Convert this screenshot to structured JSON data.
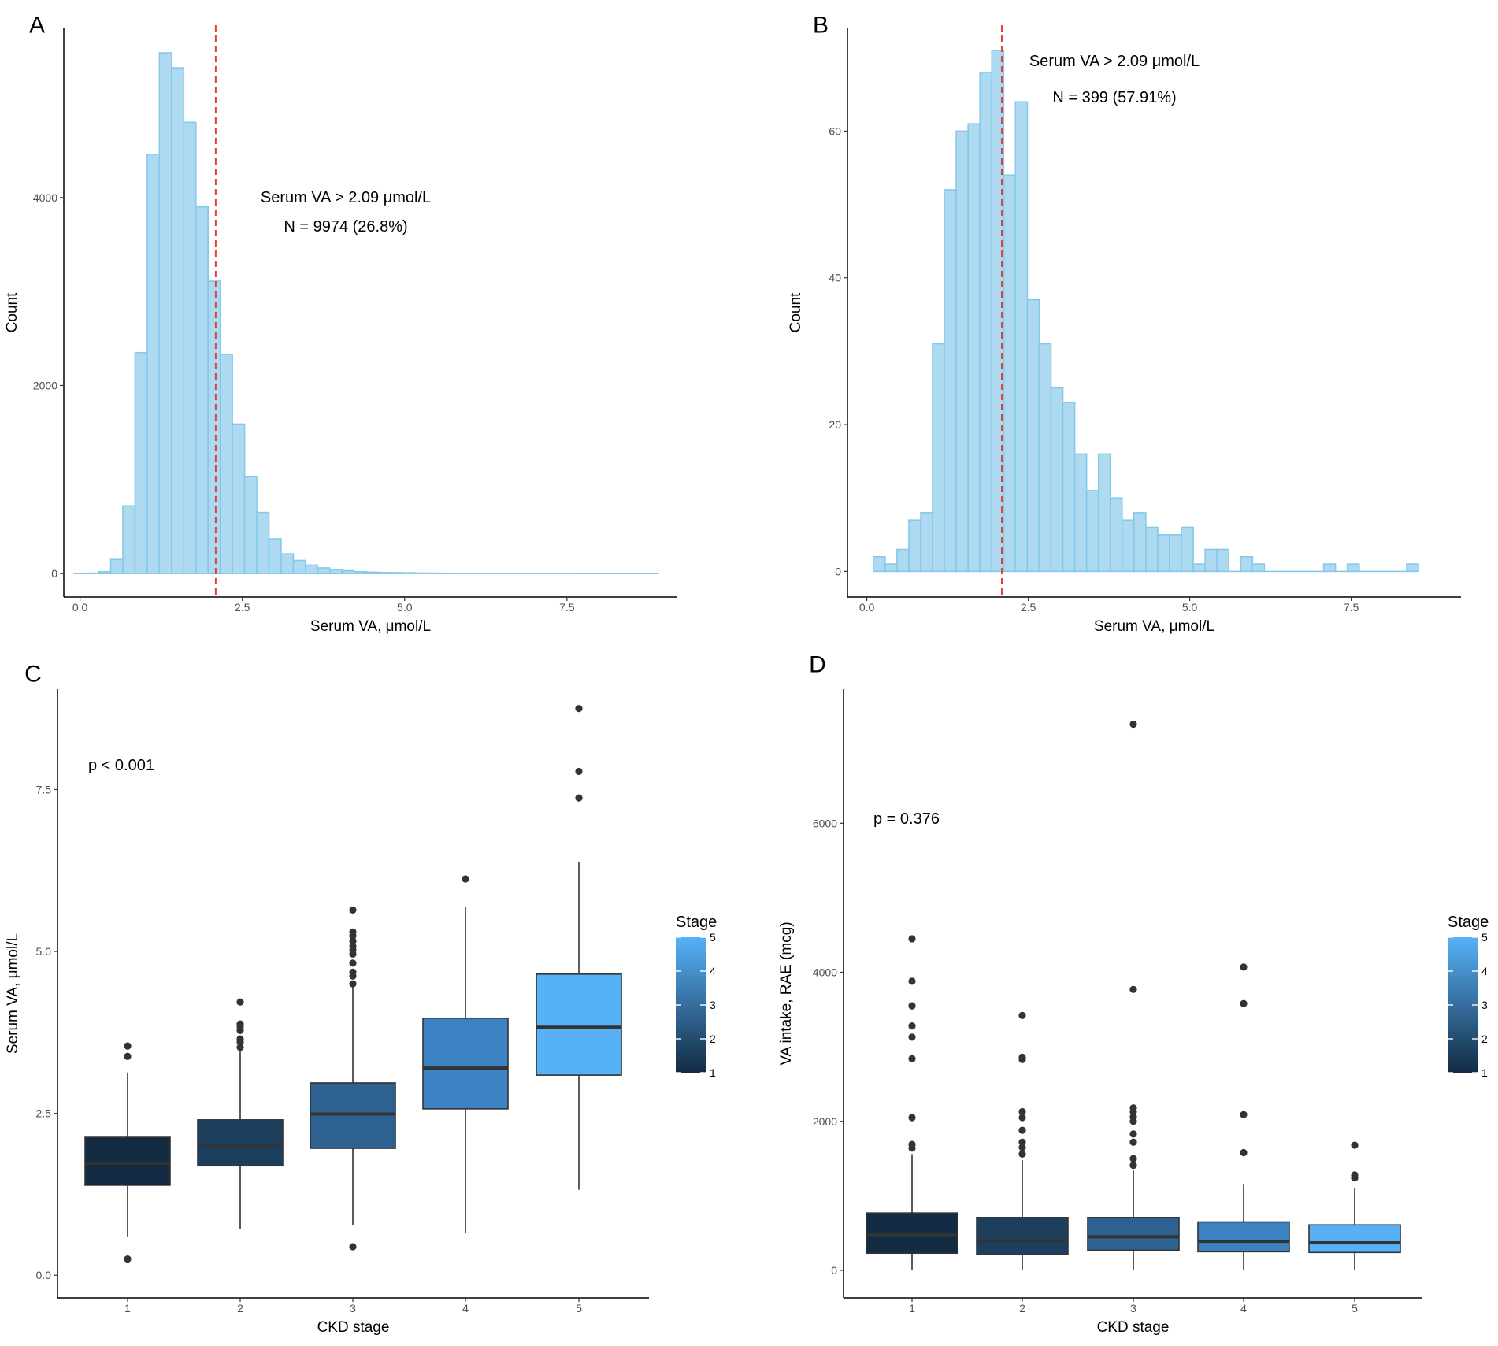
{
  "chart_data": [
    {
      "id": "A",
      "type": "histogram",
      "panel_label": "A",
      "xlabel": "Serum VA, μmol/L",
      "ylabel": "Count",
      "xlim": [
        -0.25,
        9.2
      ],
      "ylim": [
        -250,
        5800
      ],
      "xticks": [
        0,
        2.5,
        5,
        7.5
      ],
      "xtick_labels": [
        "0.0",
        "2.5",
        "5.0",
        "7.5"
      ],
      "yticks": [
        0,
        2000,
        4000
      ],
      "ytick_labels": [
        "0",
        "2000",
        "4000"
      ],
      "bin_start": -0.09,
      "bin_width": 0.1875,
      "counts": [
        0,
        5,
        20,
        150,
        720,
        2350,
        4460,
        5540,
        5380,
        4800,
        3900,
        3110,
        2330,
        1590,
        1030,
        650,
        370,
        210,
        140,
        90,
        60,
        40,
        30,
        20,
        15,
        12,
        10,
        8,
        6,
        5,
        4,
        3,
        3,
        2,
        2,
        2,
        1,
        1,
        1,
        1,
        1,
        0,
        0,
        0,
        0,
        0,
        0,
        0
      ],
      "reference_line": 2.09,
      "annotations": [
        "Serum VA > 2.09 μmol/L",
        "N = 9974 (26.8%)"
      ],
      "colors": {
        "fill": "#ADDAF1",
        "stroke": "#86C8EA",
        "reference": "#E0403A"
      }
    },
    {
      "id": "B",
      "type": "histogram",
      "panel_label": "B",
      "xlabel": "Serum VA, μmol/L",
      "ylabel": "Count",
      "xlim": [
        -0.3,
        9.2
      ],
      "ylim": [
        -3.5,
        74
      ],
      "xticks": [
        0,
        2.5,
        5,
        7.5
      ],
      "xtick_labels": [
        "0.0",
        "2.5",
        "5.0",
        "7.5"
      ],
      "yticks": [
        0,
        20,
        40,
        60
      ],
      "ytick_labels": [
        "0",
        "20",
        "40",
        "60"
      ],
      "bin_start": 0.1,
      "bin_width": 0.1835,
      "counts": [
        2,
        1,
        3,
        7,
        8,
        31,
        52,
        60,
        61,
        68,
        71,
        54,
        64,
        37,
        31,
        25,
        23,
        16,
        11,
        16,
        10,
        7,
        8,
        6,
        5,
        5,
        6,
        1,
        3,
        3,
        0,
        2,
        1,
        0,
        0,
        0,
        0,
        0,
        1,
        0,
        1,
        0,
        0,
        0,
        0,
        1
      ],
      "reference_line": 2.09,
      "annotations": [
        "Serum VA > 2.09 μmol/L",
        "N = 399 (57.91%)"
      ],
      "colors": {
        "fill": "#ADDAF1",
        "stroke": "#86C8EA",
        "reference": "#E0403A"
      }
    },
    {
      "id": "C",
      "type": "box",
      "panel_label": "C",
      "xlabel": "CKD stage",
      "ylabel": "Serum VA, μmol/L",
      "categories": [
        "1",
        "2",
        "3",
        "4",
        "5"
      ],
      "ylim": [
        -0.35,
        9.05
      ],
      "yticks": [
        0,
        2.5,
        5,
        7.5
      ],
      "ytick_labels": [
        "0.0",
        "2.5",
        "5.0",
        "7.5"
      ],
      "boxes": [
        {
          "q1": 1.39,
          "median": 1.73,
          "q3": 2.13,
          "whisker_low": 0.6,
          "whisker_high": 3.13,
          "outliers": [
            0.25,
            3.38,
            3.54
          ]
        },
        {
          "q1": 1.69,
          "median": 2.01,
          "q3": 2.4,
          "whisker_low": 0.71,
          "whisker_high": 3.47,
          "outliers": [
            3.52,
            3.6,
            3.65,
            3.78,
            3.84,
            3.88,
            4.22
          ]
        },
        {
          "q1": 1.96,
          "median": 2.49,
          "q3": 2.97,
          "whisker_low": 0.78,
          "whisker_high": 4.45,
          "outliers": [
            0.44,
            4.5,
            4.62,
            4.68,
            4.82,
            4.96,
            5.02,
            5.08,
            5.16,
            5.24,
            5.3,
            5.64
          ]
        },
        {
          "q1": 2.57,
          "median": 3.2,
          "q3": 3.97,
          "whisker_low": 0.65,
          "whisker_high": 5.68,
          "outliers": [
            6.12
          ]
        },
        {
          "q1": 3.09,
          "median": 3.83,
          "q3": 4.65,
          "whisker_low": 1.32,
          "whisker_high": 6.38,
          "outliers": [
            7.37,
            7.78,
            8.75
          ]
        }
      ],
      "fill_colors": [
        "#132B43",
        "#1D3F5E",
        "#2C6190",
        "#3B82C2",
        "#56B1F7"
      ],
      "annotation": "p < 0.001",
      "legend": {
        "title": "Stage",
        "labels": [
          "1",
          "2",
          "3",
          "4",
          "5"
        ],
        "low_color": "#132B43",
        "high_color": "#56B1F7"
      }
    },
    {
      "id": "D",
      "type": "box",
      "panel_label": "D",
      "xlabel": "CKD stage",
      "ylabel": "VA intake, RAE (mcg)",
      "categories": [
        "1",
        "2",
        "3",
        "4",
        "5"
      ],
      "ylim": [
        -370,
        7800
      ],
      "yticks": [
        0,
        2000,
        4000,
        6000
      ],
      "ytick_labels": [
        "0",
        "2000",
        "4000",
        "6000"
      ],
      "boxes": [
        {
          "q1": 230,
          "median": 480,
          "q3": 770,
          "whisker_low": 0,
          "whisker_high": 1560,
          "outliers": [
            1640,
            1690,
            2050,
            2840,
            3130,
            3280,
            3550,
            3880,
            4450
          ]
        },
        {
          "q1": 210,
          "median": 400,
          "q3": 710,
          "whisker_low": 0,
          "whisker_high": 1480,
          "outliers": [
            1560,
            1650,
            1720,
            1880,
            2050,
            2130,
            2830,
            2860,
            3420
          ]
        },
        {
          "q1": 270,
          "median": 450,
          "q3": 710,
          "whisker_low": 0,
          "whisker_high": 1340,
          "outliers": [
            1410,
            1500,
            1720,
            1830,
            2000,
            2060,
            2130,
            2180,
            3770,
            7330
          ]
        },
        {
          "q1": 250,
          "median": 390,
          "q3": 650,
          "whisker_low": 0,
          "whisker_high": 1160,
          "outliers": [
            1580,
            2090,
            3580,
            4070
          ]
        },
        {
          "q1": 240,
          "median": 370,
          "q3": 610,
          "whisker_low": 0,
          "whisker_high": 1100,
          "outliers": [
            1240,
            1280,
            1680
          ]
        }
      ],
      "fill_colors": [
        "#132B43",
        "#1D3F5E",
        "#2C6190",
        "#3B82C2",
        "#56B1F7"
      ],
      "annotation": "p = 0.376",
      "legend": {
        "title": "Stage",
        "labels": [
          "1",
          "2",
          "3",
          "4",
          "5"
        ],
        "low_color": "#132B43",
        "high_color": "#56B1F7"
      }
    }
  ]
}
